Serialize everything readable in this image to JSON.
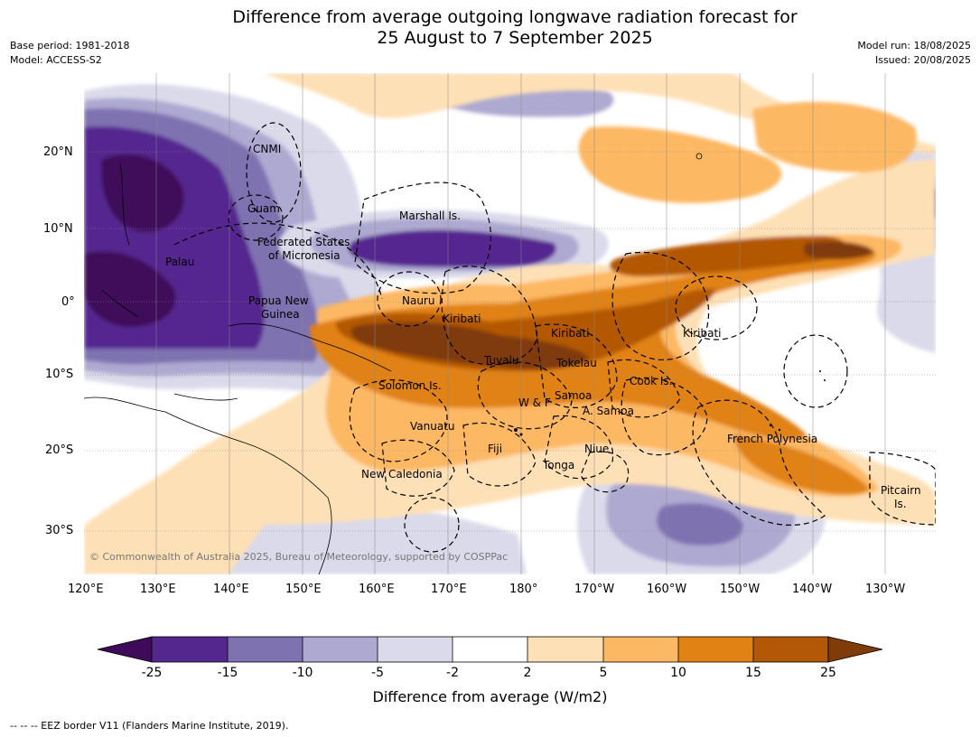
{
  "title": {
    "line1": "Difference from average outgoing longwave radiation forecast for",
    "line2": "25 August to 7 September 2025"
  },
  "meta": {
    "base_period": "Base period: 1981-2018",
    "model": "Model: ACCESS-S2",
    "model_run": "Model run: 18/08/2025",
    "issued": "Issued: 20/08/2025"
  },
  "axes": {
    "lat_labels": [
      "20°N",
      "10°N",
      "0°",
      "10°S",
      "20°S",
      "30°S"
    ],
    "lon_labels": [
      "120°E",
      "130°E",
      "140°E",
      "150°E",
      "160°E",
      "170°E",
      "180°",
      "170°W",
      "160°W",
      "150°W",
      "140°W",
      "130°W"
    ]
  },
  "regions": [
    "CNMI",
    "Guam",
    "Marshall Is.",
    "Federated States",
    "of Micronesia",
    "Palau",
    "Papua New",
    "Guinea",
    "Nauru",
    "Kiribati",
    "Kiribati",
    "Kiribati",
    "Tuvalu",
    "Tokelau",
    "Solomon Is.",
    "Cook Is.",
    "W & F",
    "Samoa",
    "A. Samoa",
    "Vanuatu",
    "Fiji",
    "Niue",
    "French Polynesia",
    "Tonga",
    "New Caledonia",
    "Pitcairn",
    "Is."
  ],
  "copyright": "© Commonwealth of Australia 2025, Bureau of Meteorology, supported by COSPPac",
  "colorbar": {
    "ticks": [
      "-25",
      "-15",
      "-10",
      "-5",
      "-2",
      "2",
      "5",
      "10",
      "15",
      "25"
    ],
    "colors": [
      "#3f0a5a",
      "#54278f",
      "#7f72b1",
      "#aea9d1",
      "#dadaeb",
      "#ffffff",
      "#fee0b6",
      "#fdb863",
      "#e08214",
      "#b35806",
      "#7f3b08"
    ],
    "label": "Difference from average (W/m2)"
  },
  "footnote": "--  --  -- EEZ border V11 (Flanders Marine Institute, 2019)."
}
